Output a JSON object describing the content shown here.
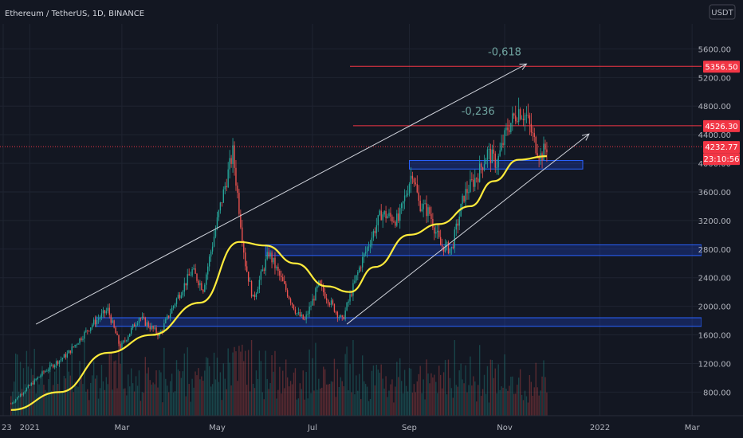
{
  "chart_data": {
    "type": "candlestick",
    "title": "Ethereum / TetherUS, 1D, BINANCE",
    "currency": "USDT",
    "x_ticks": [
      "23",
      "2021",
      "Mar",
      "May",
      "Jul",
      "Sep",
      "Nov",
      "2022",
      "Mar"
    ],
    "y_ticks": [
      800,
      1200,
      1600,
      2000,
      2400,
      2800,
      3200,
      3600,
      4000,
      4400,
      4800,
      5200,
      5600
    ],
    "y_range": [
      470,
      5950
    ],
    "x_range_months": [
      "Dec 2020",
      "Mar 2022"
    ],
    "price_tags": [
      {
        "label": "5356.50",
        "value": 5356.5,
        "color": "#f23645"
      },
      {
        "label": "4526.30",
        "value": 4526.3,
        "color": "#f23645"
      },
      {
        "label": "4232.77",
        "value": 4232.77,
        "color": "#f23645"
      },
      {
        "label": "23:10:56",
        "value": 4090,
        "color": "#f23645"
      }
    ],
    "fib_labels": [
      {
        "label": "-0,618",
        "value": 5356.5
      },
      {
        "label": "-0,236",
        "value": 4526.3
      }
    ],
    "support_zones": [
      {
        "from": 3920,
        "to": 4040
      },
      {
        "from": 2710,
        "to": 2860
      },
      {
        "from": 1720,
        "to": 1840
      }
    ],
    "channel_lines": [
      {
        "start": [
          "2021-01-05",
          1750
        ],
        "end": [
          "2021-11-15",
          5390
        ]
      },
      {
        "start": [
          "2021-07-23",
          1750
        ],
        "end": [
          "2021-12-25",
          4410
        ]
      }
    ],
    "key_points": [
      {
        "date": "2020-12-20",
        "close": 640
      },
      {
        "date": "2021-01-10",
        "close": 1080
      },
      {
        "date": "2021-01-25",
        "close": 1330
      },
      {
        "date": "2021-02-10",
        "close": 1750
      },
      {
        "date": "2021-02-20",
        "close": 1950
      },
      {
        "date": "2021-02-28",
        "close": 1420
      },
      {
        "date": "2021-03-12",
        "close": 1850
      },
      {
        "date": "2021-03-25",
        "close": 1600
      },
      {
        "date": "2021-04-05",
        "close": 2100
      },
      {
        "date": "2021-04-15",
        "close": 2500
      },
      {
        "date": "2021-04-22",
        "close": 2250
      },
      {
        "date": "2021-05-03",
        "close": 3400
      },
      {
        "date": "2021-05-11",
        "close": 4150
      },
      {
        "date": "2021-05-19",
        "close": 2600
      },
      {
        "date": "2021-05-24",
        "close": 2100
      },
      {
        "date": "2021-06-03",
        "close": 2750
      },
      {
        "date": "2021-06-21",
        "close": 1900
      },
      {
        "date": "2021-06-26",
        "close": 1800
      },
      {
        "date": "2021-07-05",
        "close": 2300
      },
      {
        "date": "2021-07-20",
        "close": 1800
      },
      {
        "date": "2021-08-01",
        "close": 2600
      },
      {
        "date": "2021-08-14",
        "close": 3300
      },
      {
        "date": "2021-08-25",
        "close": 3200
      },
      {
        "date": "2021-09-03",
        "close": 3900
      },
      {
        "date": "2021-09-07",
        "close": 3450
      },
      {
        "date": "2021-09-14",
        "close": 3300
      },
      {
        "date": "2021-09-21",
        "close": 2850
      },
      {
        "date": "2021-09-28",
        "close": 2800
      },
      {
        "date": "2021-10-06",
        "close": 3550
      },
      {
        "date": "2021-10-15",
        "close": 3850
      },
      {
        "date": "2021-10-21",
        "close": 4150
      },
      {
        "date": "2021-10-27",
        "close": 4000
      },
      {
        "date": "2021-11-03",
        "close": 4500
      },
      {
        "date": "2021-11-10",
        "close": 4750
      },
      {
        "date": "2021-11-15",
        "close": 4650
      },
      {
        "date": "2021-11-20",
        "close": 4300
      },
      {
        "date": "2021-11-24",
        "close": 4100
      },
      {
        "date": "2021-11-28",
        "close": 4232.77
      }
    ],
    "moving_average": {
      "color": "#ffeb3b",
      "points": [
        {
          "date": "2020-12-20",
          "value": 550
        },
        {
          "date": "2021-01-20",
          "value": 800
        },
        {
          "date": "2021-02-20",
          "value": 1350
        },
        {
          "date": "2021-03-20",
          "value": 1600
        },
        {
          "date": "2021-04-20",
          "value": 2050
        },
        {
          "date": "2021-05-15",
          "value": 2900
        },
        {
          "date": "2021-06-01",
          "value": 2850
        },
        {
          "date": "2021-06-20",
          "value": 2600
        },
        {
          "date": "2021-07-10",
          "value": 2280
        },
        {
          "date": "2021-07-25",
          "value": 2200
        },
        {
          "date": "2021-08-10",
          "value": 2550
        },
        {
          "date": "2021-09-01",
          "value": 3000
        },
        {
          "date": "2021-09-20",
          "value": 3150
        },
        {
          "date": "2021-10-10",
          "value": 3400
        },
        {
          "date": "2021-10-25",
          "value": 3750
        },
        {
          "date": "2021-11-10",
          "value": 4050
        },
        {
          "date": "2021-11-28",
          "value": 4100
        }
      ]
    }
  }
}
